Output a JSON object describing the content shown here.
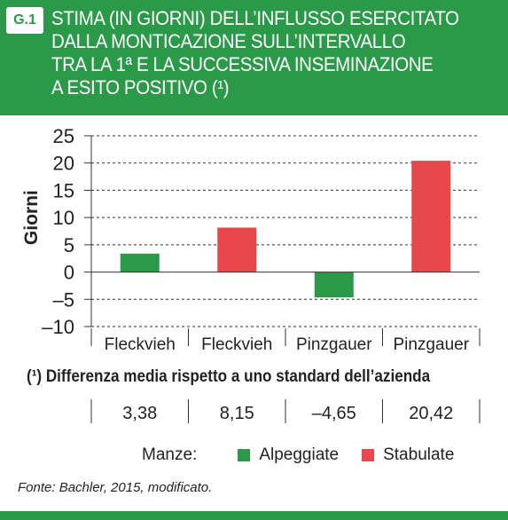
{
  "header": {
    "badge": "G.1",
    "title": "STIMA (IN GIORNI) DELL’INFLUSSO ESERCITATO\nDALLA MONTICAZIONE SULL’INTERVALLO\nTRA LA 1ª E LA SUCCESSIVA INSEMINAZIONE\nA ESITO POSITIVO (¹)"
  },
  "footnote": "(¹) Differenza media rispetto a uno standard dell’azienda",
  "value_row": [
    "3,38",
    "8,15",
    "–4,65",
    "20,42"
  ],
  "legend": {
    "prefix": "Manze:",
    "items": [
      {
        "label": "Alpeggiate",
        "color": "#2a9a48"
      },
      {
        "label": "Stabulate",
        "color": "#e8474c"
      }
    ]
  },
  "source": "Fonte: Bachler, 2015, modificato.",
  "colors": {
    "accent_green": "#2a9a48",
    "accent_red": "#e8474c"
  },
  "chart_data": {
    "type": "bar",
    "title": "",
    "xlabel": "",
    "ylabel": "Giorni",
    "ylim": [
      -10,
      25
    ],
    "yticks": [
      25,
      20,
      15,
      10,
      5,
      0,
      -5,
      -10
    ],
    "ytick_labels": [
      "25",
      "20",
      "15",
      "10",
      "5",
      "0",
      "–5",
      "–10"
    ],
    "grid": true,
    "categories": [
      "Fleckvieh",
      "Fleckvieh",
      "Pinzgauer",
      "Pinzgauer"
    ],
    "values": [
      3.38,
      8.15,
      -4.65,
      20.42
    ],
    "bar_groups": [
      "Alpeggiate",
      "Stabulate",
      "Alpeggiate",
      "Stabulate"
    ]
  }
}
